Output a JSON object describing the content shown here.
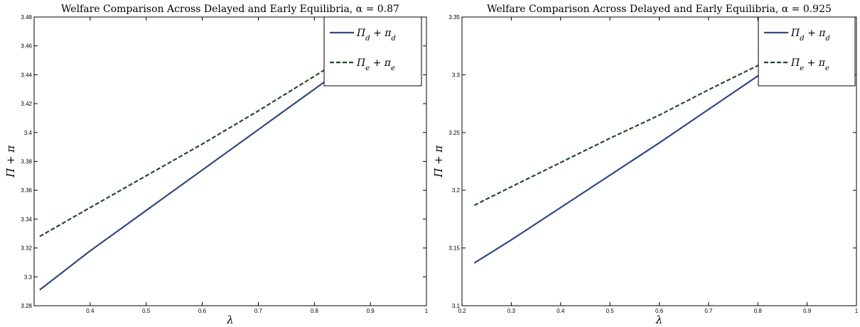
{
  "chart_data": [
    {
      "type": "line",
      "title": "Welfare Comparison Across Delayed and Early Equilibria, α = 0.87",
      "xlabel": "λ",
      "ylabel": "Π + π",
      "xlim": [
        0.3,
        1.0
      ],
      "ylim": [
        3.28,
        3.48
      ],
      "xticks": [
        "0.4",
        "0.5",
        "0.6",
        "0.7",
        "0.8",
        "0.9",
        "1"
      ],
      "xtick_values": [
        0.4,
        0.5,
        0.6,
        0.7,
        0.8,
        0.9,
        1.0
      ],
      "yticks": [
        "3.28",
        "3.3",
        "3.32",
        "3.34",
        "3.36",
        "3.38",
        "3.4",
        "3.42",
        "3.44",
        "3.46",
        "3.48"
      ],
      "ytick_values": [
        3.28,
        3.3,
        3.32,
        3.34,
        3.36,
        3.38,
        3.4,
        3.42,
        3.44,
        3.46,
        3.48
      ],
      "grid": false,
      "legend_position": "top-right",
      "series": [
        {
          "name": "Π_d + π_d",
          "name_main": "Π",
          "name_sub": "d",
          "name_rest": " + π",
          "name_sub2": "d",
          "style": "solid",
          "color": "#2e4a7d",
          "x": [
            0.31,
            0.4,
            0.5,
            0.6,
            0.7,
            0.8,
            0.85
          ],
          "y": [
            3.291,
            3.318,
            3.346,
            3.374,
            3.402,
            3.43,
            3.444
          ]
        },
        {
          "name": "Π_e + π_e",
          "name_main": "Π",
          "name_sub": "e",
          "name_rest": " + π",
          "name_sub2": "e",
          "style": "dashed",
          "color": "#1f4d2b",
          "x": [
            0.31,
            0.4,
            0.5,
            0.6,
            0.7,
            0.8,
            0.85
          ],
          "y": [
            3.328,
            3.348,
            3.37,
            3.392,
            3.415,
            3.439,
            3.451
          ]
        }
      ]
    },
    {
      "type": "line",
      "title": "Welfare Comparison Across Delayed and Early Equilibria, α = 0.925",
      "xlabel": "λ",
      "ylabel": "Π + π",
      "xlim": [
        0.2,
        1.0
      ],
      "ylim": [
        3.1,
        3.35
      ],
      "xticks": [
        "0.2",
        "0.3",
        "0.4",
        "0.5",
        "0.6",
        "0.7",
        "0.8",
        "0.9",
        "1"
      ],
      "xtick_values": [
        0.2,
        0.3,
        0.4,
        0.5,
        0.6,
        0.7,
        0.8,
        0.9,
        1.0
      ],
      "yticks": [
        "3.1",
        "3.15",
        "3.2",
        "3.25",
        "3.3",
        "3.35"
      ],
      "ytick_values": [
        3.1,
        3.15,
        3.2,
        3.25,
        3.3,
        3.35
      ],
      "grid": false,
      "legend_position": "top-right",
      "series": [
        {
          "name": "Π_d + π_d",
          "name_main": "Π",
          "name_sub": "d",
          "name_rest": " + π",
          "name_sub2": "d",
          "style": "solid",
          "color": "#2e4a7d",
          "x": [
            0.225,
            0.3,
            0.4,
            0.5,
            0.6,
            0.7,
            0.8,
            0.82
          ],
          "y": [
            3.137,
            3.157,
            3.185,
            3.213,
            3.241,
            3.27,
            3.299,
            3.305
          ]
        },
        {
          "name": "Π_e + π_e",
          "name_main": "Π",
          "name_sub": "e",
          "name_rest": " + π",
          "name_sub2": "e",
          "style": "dashed",
          "color": "#1f4d2b",
          "x": [
            0.225,
            0.3,
            0.4,
            0.5,
            0.6,
            0.7,
            0.8,
            0.82
          ],
          "y": [
            3.187,
            3.203,
            3.224,
            3.245,
            3.265,
            3.287,
            3.308,
            3.312
          ]
        }
      ]
    }
  ]
}
